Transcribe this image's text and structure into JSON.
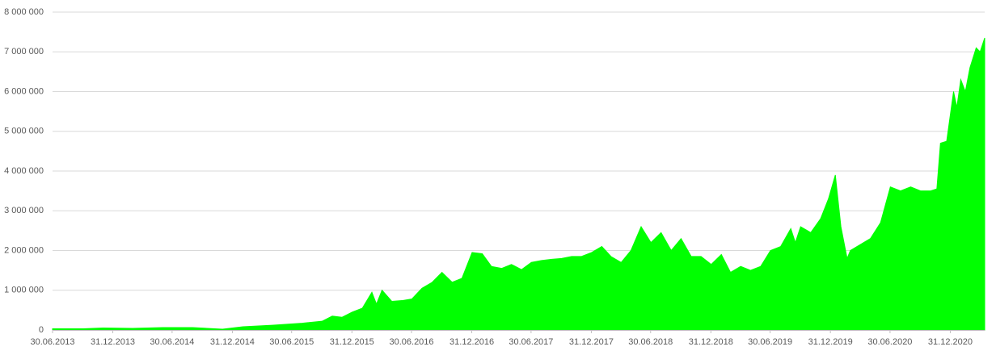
{
  "chart_data": {
    "type": "area",
    "color": "#00ff00",
    "grid": true,
    "xlim": [
      "30.06.2013",
      "15.04.2021"
    ],
    "xticks": [
      "30.06.2013",
      "31.12.2013",
      "30.06.2014",
      "31.12.2014",
      "30.06.2015",
      "31.12.2015",
      "30.06.2016",
      "31.12.2016",
      "30.06.2017",
      "31.12.2017",
      "30.06.2018",
      "31.12.2018",
      "30.06.2019",
      "31.12.2019",
      "30.06.2020",
      "31.12.2020"
    ],
    "ylim": [
      0,
      8000000
    ],
    "yticks": [
      0,
      {
        "value": 1000000,
        "label": "1 000 000"
      },
      {
        "value": 2000000,
        "label": "2 000 000"
      },
      {
        "value": 3000000,
        "label": "3 000 000"
      },
      {
        "value": 4000000,
        "label": "4 000 000"
      },
      {
        "value": 5000000,
        "label": "5 000 000"
      },
      {
        "value": 6000000,
        "label": "6 000 000"
      },
      {
        "value": 7000000,
        "label": "7 000 000"
      },
      {
        "value": 8000000,
        "label": "8 000 000"
      }
    ],
    "x": [
      "30.06.2013",
      "01.10.2013",
      "01.12.2013",
      "01.03.2014",
      "01.06.2014",
      "01.09.2014",
      "01.12.2014",
      "01.02.2015",
      "01.05.2015",
      "01.08.2015",
      "01.10.2015",
      "01.11.2015",
      "01.12.2015",
      "01.01.2016",
      "01.02.2016",
      "01.03.2016",
      "15.03.2016",
      "01.04.2016",
      "01.05.2016",
      "01.06.2016",
      "01.07.2016",
      "01.08.2016",
      "01.09.2016",
      "01.10.2016",
      "01.11.2016",
      "01.12.2016",
      "01.01.2017",
      "01.02.2017",
      "01.03.2017",
      "01.04.2017",
      "01.05.2017",
      "01.06.2017",
      "01.07.2017",
      "01.08.2017",
      "01.09.2017",
      "01.10.2017",
      "01.11.2017",
      "01.12.2017",
      "01.01.2018",
      "01.02.2018",
      "01.03.2018",
      "01.04.2018",
      "01.05.2018",
      "01.06.2018",
      "01.07.2018",
      "01.08.2018",
      "01.09.2018",
      "01.10.2018",
      "01.11.2018",
      "01.12.2018",
      "01.01.2019",
      "01.02.2019",
      "01.03.2019",
      "01.04.2019",
      "01.05.2019",
      "01.06.2019",
      "01.07.2019",
      "01.08.2019",
      "01.09.2019",
      "15.09.2019",
      "01.10.2019",
      "01.11.2019",
      "01.12.2019",
      "25.12.2019",
      "15.01.2020",
      "01.02.2020",
      "20.02.2020",
      "01.03.2020",
      "01.05.2020",
      "01.06.2020",
      "01.07.2020",
      "01.08.2020",
      "01.09.2020",
      "01.10.2020",
      "01.11.2020",
      "20.11.2020",
      "01.12.2020",
      "20.12.2020",
      "10.01.2021",
      "20.01.2021",
      "01.02.2021",
      "15.02.2021",
      "01.03.2021",
      "20.03.2021",
      "01.04.2021",
      "15.04.2021"
    ],
    "values": [
      30000,
      30000,
      50000,
      40000,
      60000,
      60000,
      20000,
      80000,
      120000,
      170000,
      220000,
      350000,
      320000,
      450000,
      550000,
      950000,
      650000,
      1000000,
      720000,
      740000,
      780000,
      1050000,
      1200000,
      1450000,
      1200000,
      1300000,
      1950000,
      1920000,
      1600000,
      1550000,
      1650000,
      1520000,
      1700000,
      1750000,
      1780000,
      1800000,
      1850000,
      1850000,
      1950000,
      2100000,
      1850000,
      1700000,
      2000000,
      2600000,
      2200000,
      2450000,
      2000000,
      2300000,
      1850000,
      1850000,
      1650000,
      1900000,
      1450000,
      1600000,
      1500000,
      1600000,
      2000000,
      2100000,
      2550000,
      2200000,
      2600000,
      2450000,
      2800000,
      3300000,
      3900000,
      2600000,
      1800000,
      2000000,
      2300000,
      2700000,
      3600000,
      3500000,
      3600000,
      3500000,
      3500000,
      3550000,
      4700000,
      4750000,
      6000000,
      5600000,
      6300000,
      6000000,
      6600000,
      7100000,
      7000000,
      7350000
    ]
  }
}
